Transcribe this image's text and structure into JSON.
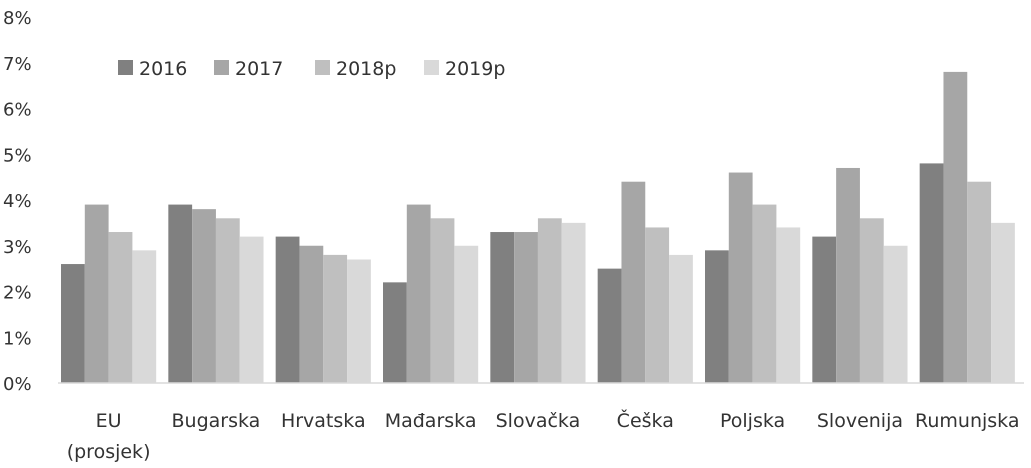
{
  "chart_data": {
    "type": "bar",
    "title": "",
    "xlabel": "",
    "ylabel": "",
    "ylim": [
      0,
      8
    ],
    "y_ticks": [
      "0%",
      "1%",
      "2%",
      "3%",
      "4%",
      "5%",
      "6%",
      "7%",
      "8%"
    ],
    "grid": false,
    "legend_position": "top-left",
    "categories": [
      [
        "EU",
        "(prosjek)"
      ],
      [
        "Bugarska"
      ],
      [
        "Hrvatska"
      ],
      [
        "Mađarska"
      ],
      [
        "Slovačka"
      ],
      [
        "Češka"
      ],
      [
        "Poljska"
      ],
      [
        "Slovenija"
      ],
      [
        "Rumunjska"
      ]
    ],
    "series": [
      {
        "name": "2016",
        "color": "#808080",
        "values": [
          2.6,
          3.9,
          3.2,
          2.2,
          3.3,
          2.5,
          2.9,
          3.2,
          4.8
        ]
      },
      {
        "name": "2017",
        "color": "#a6a6a6",
        "values": [
          3.9,
          3.8,
          3.0,
          3.9,
          3.3,
          4.4,
          4.6,
          4.7,
          6.8
        ]
      },
      {
        "name": "2018p",
        "color": "#bfbfbf",
        "values": [
          3.3,
          3.6,
          2.8,
          3.6,
          3.6,
          3.4,
          3.9,
          3.6,
          4.4
        ]
      },
      {
        "name": "2019p",
        "color": "#d9d9d9",
        "values": [
          2.9,
          3.2,
          2.7,
          3.0,
          3.5,
          2.8,
          3.4,
          3.0,
          3.5
        ]
      }
    ]
  }
}
